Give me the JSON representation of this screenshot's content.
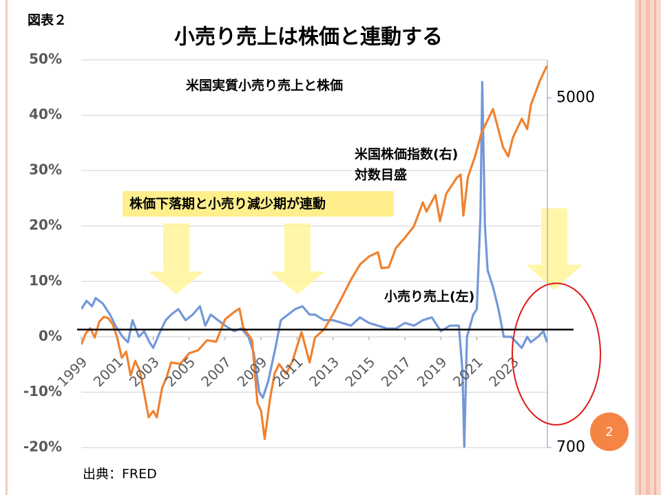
{
  "chart_data": {
    "type": "line",
    "figure_label": "図表２",
    "title": "小売り売上は株価と連動する",
    "subtitle": "米国実質小売り売上と株価",
    "annotations": [
      "米国株価指数(右)",
      "対数目盛",
      "株価下落期と小売り減少期が連動",
      "小売り売上(左)"
    ],
    "source": "出典：FRED",
    "page_number": 2,
    "xlim": [
      1999,
      2025
    ],
    "xticks": [
      1999,
      2001,
      2003,
      2005,
      2007,
      2009,
      2011,
      2013,
      2015,
      2017,
      2019,
      2021,
      2023
    ],
    "ylim": [
      -20,
      50
    ],
    "yticks": [
      {
        "value": -20,
        "label": "-20%"
      },
      {
        "value": -10,
        "label": "-10%"
      },
      {
        "value": 0,
        "label": "0%"
      },
      {
        "value": 10,
        "label": "10%"
      },
      {
        "value": 20,
        "label": "20%"
      },
      {
        "value": 30,
        "label": "30%"
      },
      {
        "value": 40,
        "label": "40%"
      },
      {
        "value": 50,
        "label": "50%"
      }
    ],
    "y2lim": [
      700,
      6200
    ],
    "y2ticks": [
      700,
      5000
    ],
    "y2log": true,
    "grid": true,
    "reference_line": 1.3,
    "series": [
      {
        "name": "小売り売上(左)",
        "color": "#7397d8",
        "axis": "y",
        "x": [
          1999.0,
          1999.3,
          1999.6,
          1999.8,
          2000.2,
          2000.6,
          2000.9,
          2001.3,
          2001.6,
          2001.85,
          2002.2,
          2002.5,
          2002.8,
          2003.0,
          2003.4,
          2003.7,
          2004.0,
          2004.4,
          2004.8,
          2005.2,
          2005.6,
          2005.9,
          2006.2,
          2006.6,
          2007.0,
          2007.5,
          2007.9,
          2008.3,
          2008.6,
          2008.9,
          2009.1,
          2009.4,
          2009.8,
          2010.1,
          2010.5,
          2010.9,
          2011.3,
          2011.7,
          2012.0,
          2012.5,
          2013.0,
          2013.5,
          2014.0,
          2014.5,
          2015.0,
          2015.5,
          2016.0,
          2016.5,
          2017.0,
          2017.5,
          2018.0,
          2018.5,
          2019.0,
          2019.5,
          2020.0,
          2020.2,
          2020.3,
          2020.45,
          2020.8,
          2021.0,
          2021.2,
          2021.3,
          2021.45,
          2021.6,
          2021.9,
          2022.2,
          2022.5,
          2022.9,
          2023.2,
          2023.5,
          2023.8,
          2024.0,
          2024.4,
          2024.7,
          2024.9
        ],
        "values": [
          5,
          6.5,
          5.5,
          7,
          6,
          4,
          2,
          0,
          -1,
          3,
          0,
          1,
          -1,
          -2,
          1,
          3,
          4,
          5,
          3,
          4,
          5.5,
          2,
          4,
          3,
          2,
          1,
          1.5,
          0,
          -3,
          -10,
          -11,
          -8,
          -2,
          3,
          4,
          5,
          5.5,
          4,
          4,
          3,
          3,
          2.5,
          2,
          3.5,
          2.5,
          2,
          1.5,
          1.5,
          2.5,
          2,
          3,
          3.5,
          1,
          2,
          2,
          -6,
          -20,
          0,
          4,
          5,
          22,
          46,
          20,
          12,
          9,
          5,
          0,
          0,
          -1,
          -2,
          0,
          -1,
          0,
          1,
          -1
        ]
      },
      {
        "name": "米国株価指数(右)",
        "color": "#f0812e",
        "axis": "y2",
        "x": [
          1999.0,
          1999.25,
          1999.5,
          1999.75,
          2000.0,
          2000.25,
          2000.5,
          2000.75,
          2001.0,
          2001.25,
          2001.5,
          2001.75,
          2002.0,
          2002.25,
          2002.5,
          2002.75,
          2003.0,
          2003.2,
          2003.5,
          2003.75,
          2004.0,
          2004.5,
          2005.0,
          2005.5,
          2006.0,
          2006.5,
          2007.0,
          2007.5,
          2007.8,
          2008.0,
          2008.5,
          2008.8,
          2009.0,
          2009.2,
          2009.5,
          2009.75,
          2010.0,
          2010.4,
          2010.75,
          2011.25,
          2011.7,
          2012.0,
          2012.5,
          2013.0,
          2013.5,
          2014.0,
          2014.5,
          2015.0,
          2015.5,
          2015.7,
          2016.1,
          2016.5,
          2017.0,
          2017.5,
          2018.0,
          2018.2,
          2018.7,
          2018.95,
          2019.3,
          2019.9,
          2020.1,
          2020.25,
          2020.5,
          2020.9,
          2021.25,
          2021.9,
          2022.45,
          2022.75,
          2023.0,
          2023.5,
          2023.8,
          2024.0,
          2024.5,
          2024.9
        ],
        "values": [
          1250,
          1330,
          1370,
          1300,
          1420,
          1460,
          1450,
          1400,
          1300,
          1160,
          1200,
          1050,
          1140,
          1080,
          950,
          830,
          860,
          830,
          980,
          1040,
          1130,
          1120,
          1190,
          1210,
          1280,
          1270,
          1440,
          1500,
          1530,
          1380,
          1280,
          900,
          860,
          735,
          920,
          1060,
          1120,
          1060,
          1140,
          1340,
          1130,
          1300,
          1360,
          1480,
          1630,
          1800,
          1960,
          2050,
          2100,
          1920,
          1930,
          2150,
          2280,
          2430,
          2780,
          2640,
          2900,
          2500,
          2920,
          3200,
          3250,
          2580,
          3200,
          3600,
          4100,
          4700,
          3800,
          3600,
          4000,
          4450,
          4200,
          4800,
          5500,
          6000
        ]
      }
    ]
  }
}
